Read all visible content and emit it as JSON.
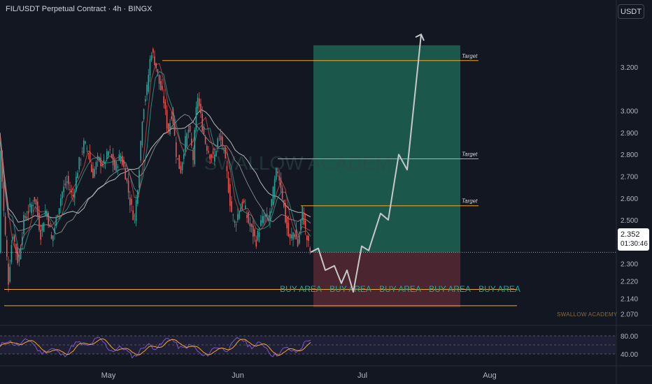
{
  "header": {
    "symbol_title": "FIL/USDT Perpetual Contract · 4h · BINGX"
  },
  "currency_button": {
    "label": "USDT"
  },
  "price_badge": {
    "price": "2.352",
    "countdown": "01:30:46",
    "color": "#131722"
  },
  "watermark": {
    "text": "SWALLOW ACADEMY"
  },
  "footer_credit": {
    "text": "SWALLOW ACADEMY"
  },
  "colors": {
    "background": "#131722",
    "up_candle": "#26a69a",
    "down_candle": "#ef5350",
    "level_line": "#f5a623",
    "target_zone": "#1f6f5a",
    "stop_zone": "#5a2a35",
    "buy_area_text": "#26a69a",
    "projection": "#c8c8c8",
    "rsi_line": "#7e57c2",
    "rsi_ma": "#f5a623"
  },
  "chart_data": [
    {
      "type": "candlestick",
      "symbol": "FIL/USDT",
      "timeframe": "4h",
      "x_ticks": [
        "May",
        "Jun",
        "Jul",
        "Aug"
      ],
      "y_ticks": [
        "3.200",
        "3.000",
        "2.900",
        "2.800",
        "2.700",
        "2.600",
        "2.500",
        "2.400",
        "2.300",
        "2.220",
        "2.140",
        "2.070"
      ],
      "ylim": [
        2.03,
        3.45
      ],
      "last_price": 2.352,
      "price_path": [
        [
          0,
          2.88
        ],
        [
          6,
          2.5
        ],
        [
          12,
          2.22
        ],
        [
          18,
          2.45
        ],
        [
          26,
          2.3
        ],
        [
          34,
          2.5
        ],
        [
          42,
          2.55
        ],
        [
          50,
          2.6
        ],
        [
          58,
          2.43
        ],
        [
          66,
          2.56
        ],
        [
          74,
          2.4
        ],
        [
          80,
          2.5
        ],
        [
          88,
          2.62
        ],
        [
          96,
          2.68
        ],
        [
          104,
          2.6
        ],
        [
          112,
          2.75
        ],
        [
          120,
          2.85
        ],
        [
          126,
          2.82
        ],
        [
          132,
          2.7
        ],
        [
          140,
          2.78
        ],
        [
          148,
          2.75
        ],
        [
          156,
          2.82
        ],
        [
          164,
          2.73
        ],
        [
          172,
          2.8
        ],
        [
          180,
          2.7
        ],
        [
          186,
          2.58
        ],
        [
          192,
          2.5
        ],
        [
          198,
          2.7
        ],
        [
          204,
          3.0
        ],
        [
          210,
          3.1
        ],
        [
          216,
          3.28
        ],
        [
          222,
          3.22
        ],
        [
          228,
          3.12
        ],
        [
          234,
          3.05
        ],
        [
          240,
          2.9
        ],
        [
          246,
          3.0
        ],
        [
          252,
          2.8
        ],
        [
          258,
          2.72
        ],
        [
          264,
          2.85
        ],
        [
          270,
          2.92
        ],
        [
          276,
          2.78
        ],
        [
          282,
          3.08
        ],
        [
          288,
          2.95
        ],
        [
          294,
          2.85
        ],
        [
          300,
          2.8
        ],
        [
          306,
          2.78
        ],
        [
          312,
          2.88
        ],
        [
          318,
          2.85
        ],
        [
          324,
          2.72
        ],
        [
          330,
          2.55
        ],
        [
          336,
          2.48
        ],
        [
          342,
          2.55
        ],
        [
          348,
          2.58
        ],
        [
          354,
          2.5
        ],
        [
          360,
          2.45
        ],
        [
          366,
          2.4
        ],
        [
          372,
          2.48
        ],
        [
          378,
          2.52
        ],
        [
          384,
          2.5
        ],
        [
          390,
          2.62
        ],
        [
          396,
          2.74
        ],
        [
          402,
          2.65
        ],
        [
          408,
          2.5
        ],
        [
          414,
          2.4
        ],
        [
          420,
          2.45
        ],
        [
          426,
          2.38
        ],
        [
          432,
          2.55
        ],
        [
          438,
          2.42
        ],
        [
          444,
          2.35
        ]
      ],
      "projection_path": [
        [
          444,
          2.352
        ],
        [
          455,
          2.37
        ],
        [
          465,
          2.27
        ],
        [
          478,
          2.29
        ],
        [
          488,
          2.21
        ],
        [
          496,
          2.27
        ],
        [
          505,
          2.17
        ],
        [
          517,
          2.38
        ],
        [
          527,
          2.36
        ],
        [
          544,
          2.53
        ],
        [
          555,
          2.5
        ],
        [
          570,
          2.8
        ],
        [
          582,
          2.73
        ],
        [
          602,
          3.35
        ]
      ]
    },
    {
      "type": "line",
      "name": "RSI",
      "y_ticks": [
        "80.00",
        "40.00"
      ],
      "ylim": [
        20,
        100
      ]
    }
  ],
  "levels": [
    {
      "price": 3.23,
      "label": "Target"
    },
    {
      "price": 2.78,
      "label": "Target"
    },
    {
      "price": 2.565,
      "label": "Target"
    },
    {
      "price": 2.182,
      "label": ""
    },
    {
      "price": 2.107,
      "label": ""
    }
  ],
  "buy_area_labels": [
    "BUY AREA",
    "BUY AREA",
    "BUY AREA",
    "BUY AREA",
    "BUY AREA"
  ],
  "position": {
    "entry": 2.352,
    "target": 3.3,
    "stop": 2.1
  }
}
